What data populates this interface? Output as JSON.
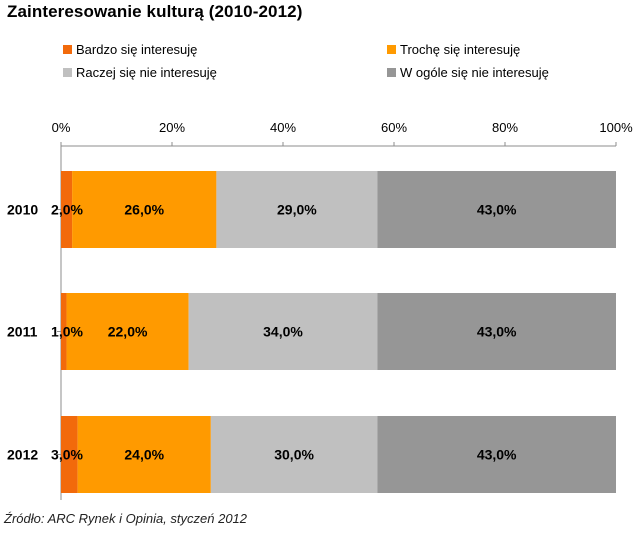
{
  "chart_data": {
    "type": "bar",
    "orientation": "horizontal",
    "stacked": true,
    "title": "Zainteresowanie kulturą (2010-2012)",
    "categories": [
      "2010",
      "2011",
      "2012"
    ],
    "series": [
      {
        "name": "Bardzo się interesuję",
        "color": "#f26a0b",
        "values": [
          2.0,
          1.0,
          3.0
        ],
        "labels": [
          "2,0%",
          "1,0%",
          "3,0%"
        ]
      },
      {
        "name": "Trochę się interesuję",
        "color": "#ff9a00",
        "values": [
          26.0,
          22.0,
          24.0
        ],
        "labels": [
          "26,0%",
          "22,0%",
          "24,0%"
        ]
      },
      {
        "name": "Raczej się nie interesuję",
        "color": "#c0c0c0",
        "values": [
          29.0,
          34.0,
          30.0
        ],
        "labels": [
          "29,0%",
          "34,0%",
          "30,0%"
        ]
      },
      {
        "name": "W ogóle się nie interesuję",
        "color": "#969696",
        "values": [
          43.0,
          43.0,
          43.0
        ],
        "labels": [
          "43,0%",
          "43,0%",
          "43,0%"
        ]
      }
    ],
    "x_ticks": [
      0,
      20,
      40,
      60,
      80,
      100
    ],
    "x_tick_labels": [
      "0%",
      "20%",
      "40%",
      "60%",
      "80%",
      "100%"
    ],
    "xlim": [
      0,
      100
    ],
    "legend_position": "top",
    "grid": false
  },
  "source": "Źródło: ARC Rynek i Opinia, styczeń 2012"
}
